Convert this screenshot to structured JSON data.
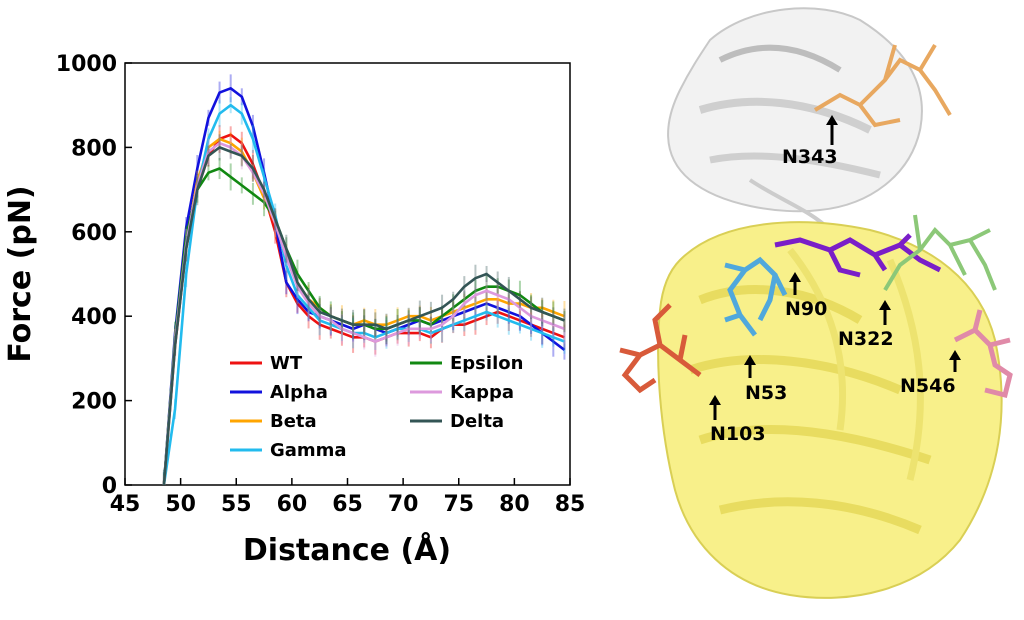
{
  "chart_data": {
    "type": "line",
    "xlabel": "Distance (Å)",
    "ylabel": "Force (pN)",
    "xlim": [
      45,
      85
    ],
    "ylim": [
      0,
      1000
    ],
    "xticks": [
      45,
      50,
      55,
      60,
      65,
      70,
      75,
      80,
      85
    ],
    "yticks": [
      0,
      200,
      400,
      600,
      800,
      1000
    ],
    "grid": false,
    "legend": {
      "placement": "lower-center",
      "columns": 2
    },
    "x": [
      48.5,
      49.5,
      50.5,
      51.5,
      52.5,
      53.5,
      54.5,
      55.5,
      56.5,
      57.5,
      58.5,
      59.5,
      60.5,
      61.5,
      62.5,
      63.5,
      64.5,
      65.5,
      66.5,
      67.5,
      68.5,
      69.5,
      70.5,
      71.5,
      72.5,
      73.5,
      74.5,
      75.5,
      76.5,
      77.5,
      78.5,
      79.5,
      80.5,
      81.5,
      82.5,
      83.5,
      84.5
    ],
    "series": [
      {
        "name": "WT",
        "color": "#ee1111",
        "values": [
          0,
          330,
          560,
          700,
          780,
          820,
          830,
          810,
          760,
          690,
          600,
          480,
          430,
          400,
          380,
          370,
          360,
          350,
          350,
          340,
          350,
          360,
          360,
          360,
          350,
          370,
          380,
          380,
          390,
          400,
          410,
          400,
          390,
          380,
          370,
          360,
          350
        ]
      },
      {
        "name": "Alpha",
        "color": "#1111dd",
        "values": [
          0,
          360,
          610,
          750,
          870,
          930,
          940,
          920,
          850,
          740,
          620,
          480,
          440,
          410,
          400,
          390,
          380,
          370,
          380,
          370,
          360,
          370,
          380,
          390,
          380,
          390,
          400,
          410,
          420,
          430,
          420,
          410,
          400,
          380,
          360,
          340,
          320
        ]
      },
      {
        "name": "Beta",
        "color": "#ffa500",
        "values": [
          0,
          340,
          570,
          720,
          800,
          820,
          810,
          790,
          740,
          680,
          620,
          550,
          480,
          440,
          420,
          400,
          390,
          380,
          390,
          380,
          380,
          390,
          400,
          400,
          390,
          400,
          410,
          420,
          430,
          440,
          440,
          430,
          430,
          420,
          420,
          410,
          400
        ]
      },
      {
        "name": "Gamma",
        "color": "#22bbee",
        "values": [
          0,
          180,
          500,
          700,
          820,
          880,
          900,
          880,
          820,
          730,
          640,
          520,
          450,
          420,
          390,
          380,
          370,
          360,
          360,
          350,
          360,
          370,
          370,
          370,
          360,
          370,
          380,
          390,
          400,
          410,
          400,
          390,
          380,
          370,
          360,
          350,
          340
        ]
      },
      {
        "name": "Epsilon",
        "color": "#118811",
        "values": [
          0,
          350,
          590,
          700,
          740,
          750,
          730,
          710,
          690,
          670,
          630,
          560,
          500,
          460,
          420,
          400,
          390,
          380,
          380,
          370,
          370,
          380,
          390,
          390,
          380,
          400,
          420,
          440,
          460,
          470,
          470,
          460,
          450,
          430,
          410,
          400,
          390
        ]
      },
      {
        "name": "Kappa",
        "color": "#dd99dd",
        "values": [
          0,
          340,
          570,
          710,
          790,
          810,
          800,
          780,
          740,
          690,
          620,
          540,
          470,
          430,
          400,
          390,
          370,
          360,
          350,
          340,
          350,
          360,
          370,
          370,
          370,
          380,
          400,
          430,
          450,
          460,
          450,
          440,
          420,
          400,
          390,
          380,
          370
        ]
      },
      {
        "name": "Delta",
        "color": "#335555",
        "values": [
          0,
          330,
          560,
          700,
          780,
          800,
          790,
          780,
          750,
          700,
          630,
          560,
          480,
          440,
          410,
          400,
          390,
          380,
          380,
          380,
          370,
          380,
          390,
          400,
          410,
          420,
          440,
          470,
          490,
          500,
          480,
          460,
          440,
          420,
          410,
          400,
          390
        ]
      }
    ]
  },
  "structure": {
    "sites": [
      "N343",
      "N90",
      "N322",
      "N53",
      "N546",
      "N103"
    ]
  }
}
